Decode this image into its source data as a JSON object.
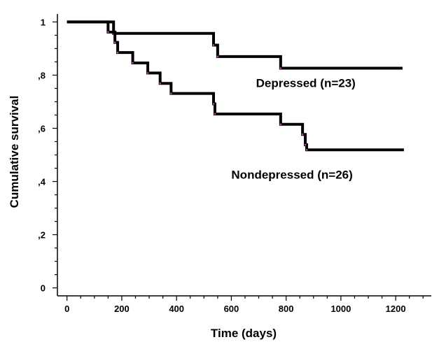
{
  "chart_data": {
    "type": "line",
    "title": "",
    "xlabel": "Time (days)",
    "ylabel": "Cumulative survival",
    "xlim": [
      -35,
      1330
    ],
    "ylim": [
      -0.03,
      1.03
    ],
    "x_ticks": [
      {
        "value": 0,
        "label": "0"
      },
      {
        "value": 200,
        "label": "200"
      },
      {
        "value": 400,
        "label": "400"
      },
      {
        "value": 600,
        "label": "600"
      },
      {
        "value": 800,
        "label": "800"
      },
      {
        "value": 1000,
        "label": "1000"
      },
      {
        "value": 1200,
        "label": "1200"
      }
    ],
    "x_minor_step": 50,
    "y_ticks": [
      {
        "value": 0,
        "label": "0"
      },
      {
        "value": 0.2,
        "label": ",2"
      },
      {
        "value": 0.4,
        "label": ",4"
      },
      {
        "value": 0.6,
        "label": ",6"
      },
      {
        "value": 0.8,
        "label": ",8"
      },
      {
        "value": 1.0,
        "label": "1"
      }
    ],
    "y_minor_step": 0.05,
    "step_style": "post",
    "grid": false,
    "legend": "none",
    "series": [
      {
        "name": "Depressed (n=23)",
        "color": "#000000",
        "points": [
          {
            "x": 0,
            "y": 1.0
          },
          {
            "x": 170,
            "y": 0.957
          },
          {
            "x": 535,
            "y": 0.913
          },
          {
            "x": 550,
            "y": 0.87
          },
          {
            "x": 780,
            "y": 0.826
          },
          {
            "x": 1225,
            "y": 0.826
          }
        ]
      },
      {
        "name": "Nondepressed (n=26)",
        "color": "#000000",
        "points": [
          {
            "x": 0,
            "y": 1.0
          },
          {
            "x": 150,
            "y": 0.962
          },
          {
            "x": 175,
            "y": 0.923
          },
          {
            "x": 185,
            "y": 0.885
          },
          {
            "x": 240,
            "y": 0.846
          },
          {
            "x": 295,
            "y": 0.808
          },
          {
            "x": 340,
            "y": 0.769
          },
          {
            "x": 380,
            "y": 0.731
          },
          {
            "x": 535,
            "y": 0.692
          },
          {
            "x": 540,
            "y": 0.654
          },
          {
            "x": 780,
            "y": 0.615
          },
          {
            "x": 860,
            "y": 0.577
          },
          {
            "x": 870,
            "y": 0.538
          },
          {
            "x": 875,
            "y": 0.519
          },
          {
            "x": 1230,
            "y": 0.519
          }
        ]
      }
    ],
    "censor_color": "#c040c0",
    "annotations": [
      {
        "text": "Depressed (n=23)",
        "x": 690,
        "y": 0.755
      },
      {
        "text": "Nondepressed (n=26)",
        "x": 600,
        "y": 0.41
      }
    ]
  }
}
